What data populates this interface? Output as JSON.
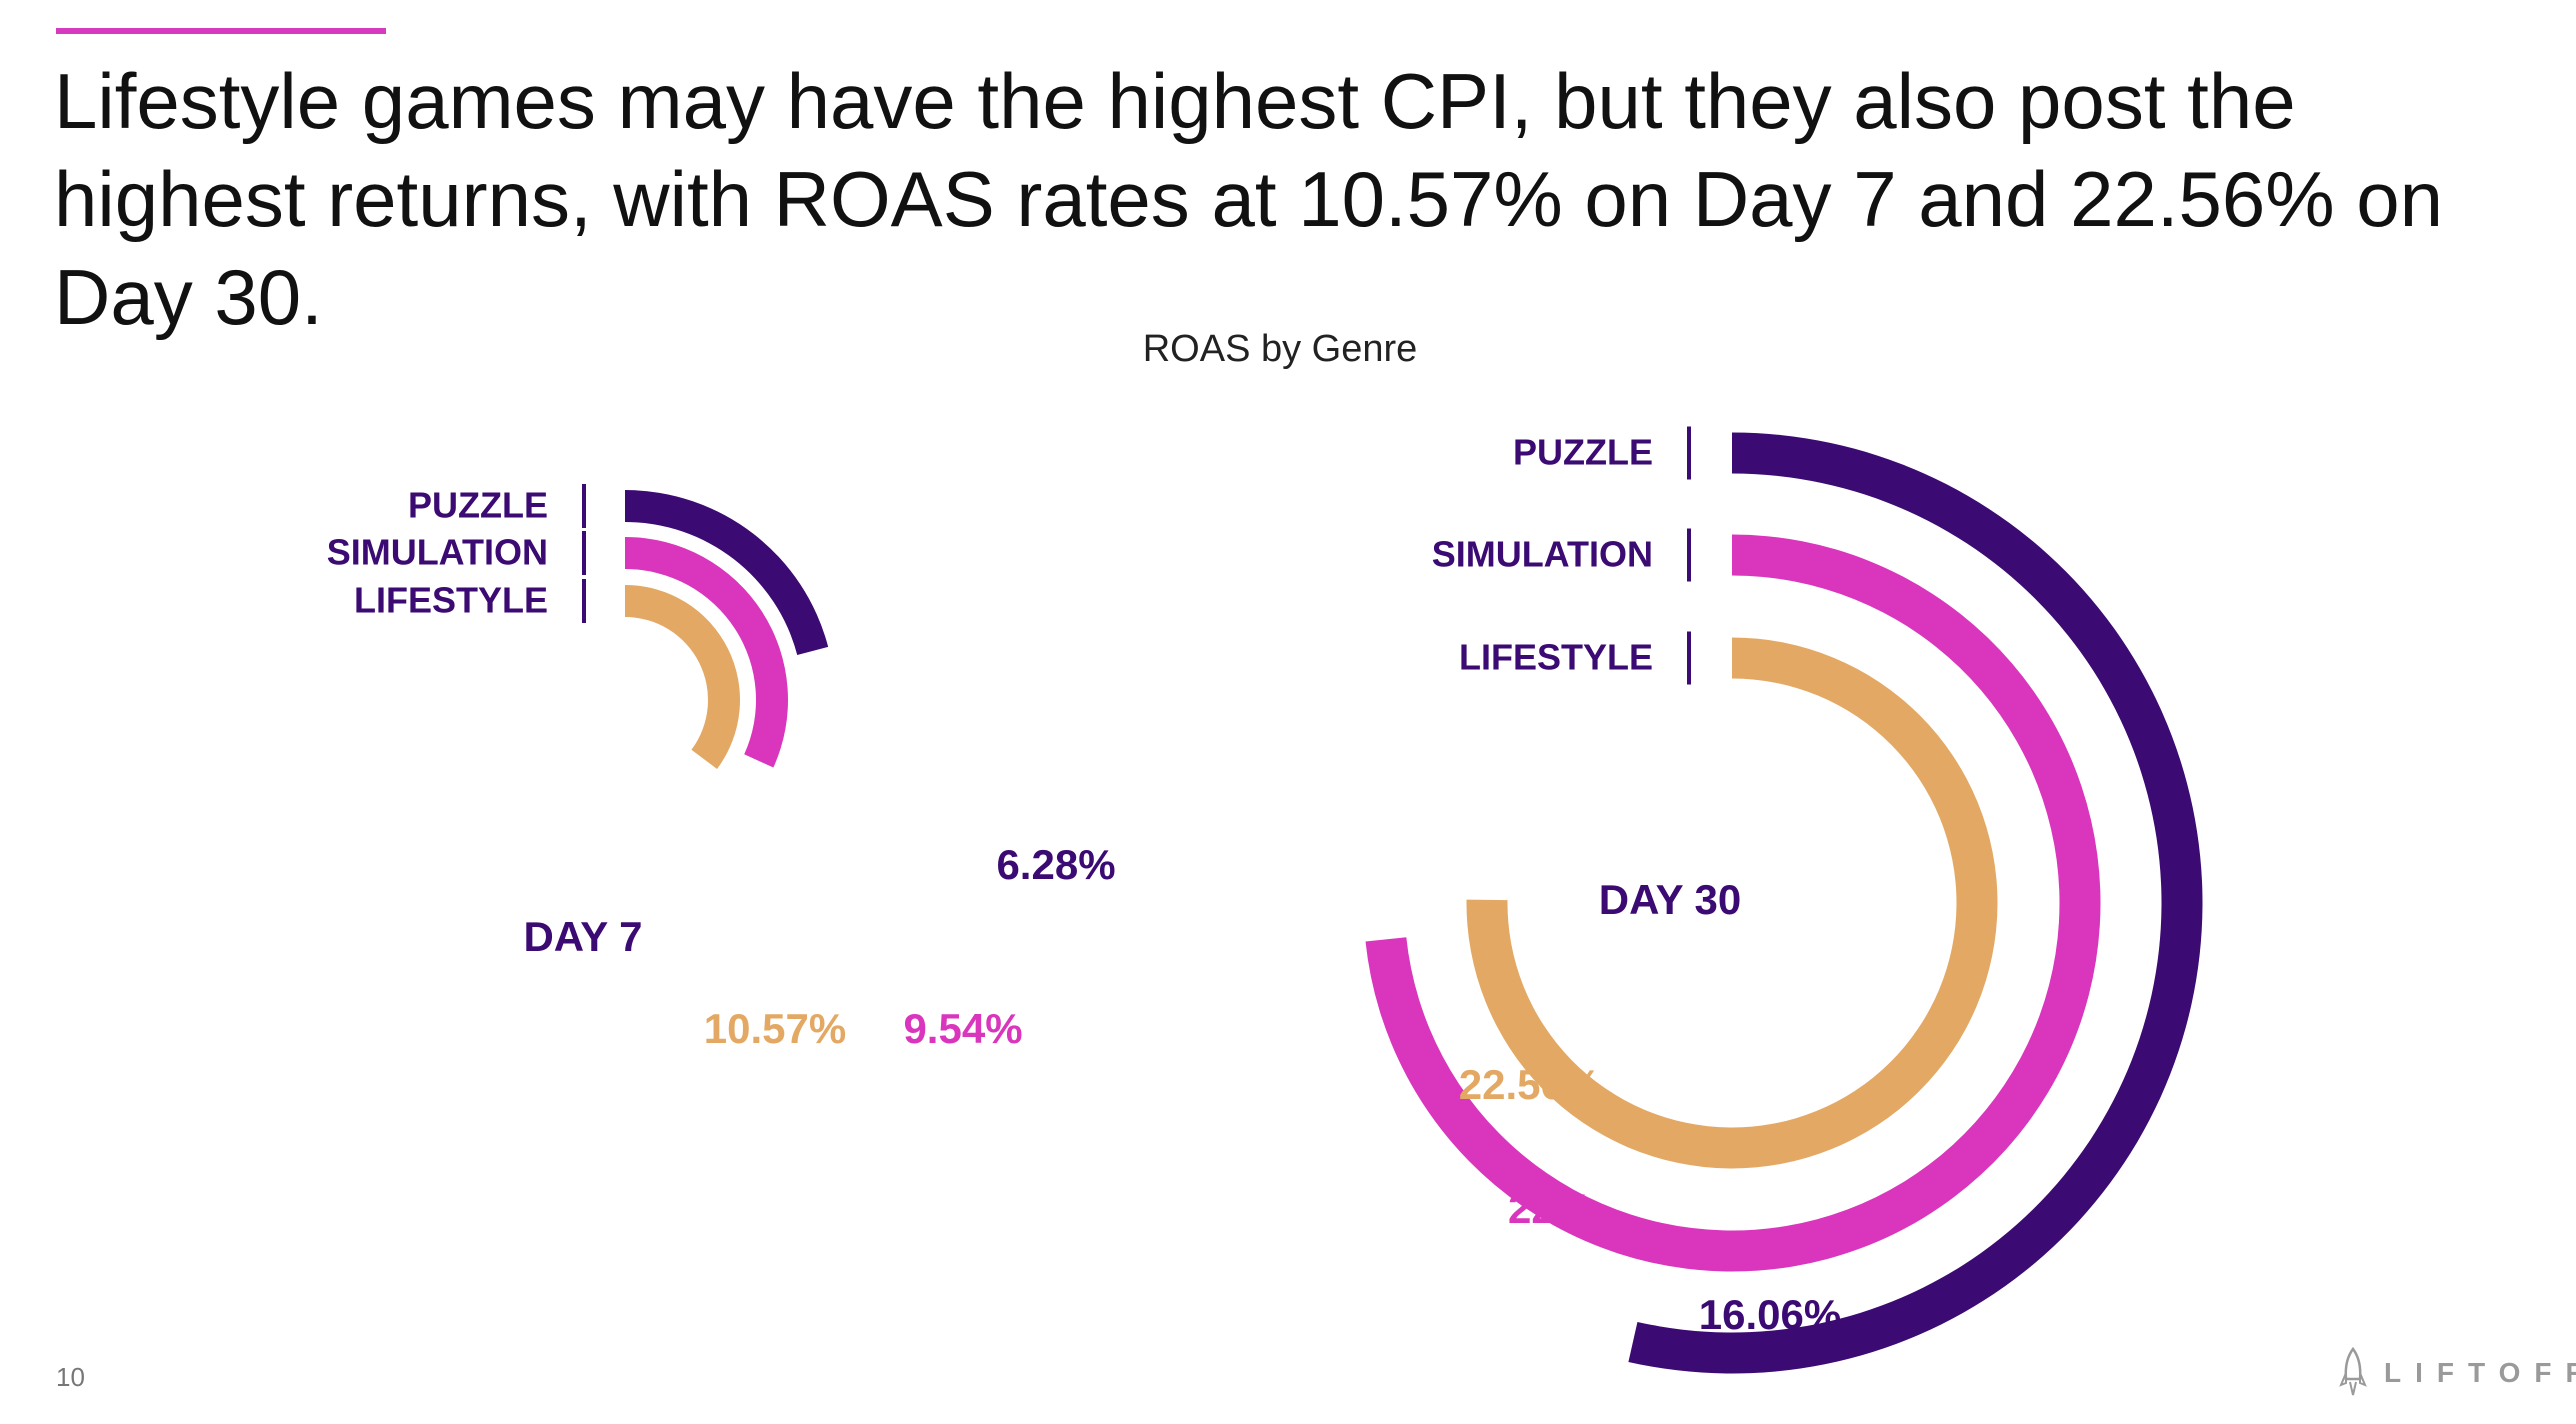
{
  "header": {
    "headline": "Lifestyle games may have the highest CPI, but they also post the highest returns, with ROAS rates at 10.57% on Day 7 and 22.56% on Day 30.",
    "accent_color": "#d63abf"
  },
  "chart_title": "ROAS by Genre",
  "chart_data": [
    {
      "type": "radial-bar",
      "center_label": "DAY 7",
      "categories": [
        "PUZZLE",
        "SIMULATION",
        "LIFESTYLE"
      ],
      "values": [
        6.28,
        9.54,
        10.57
      ],
      "value_labels": [
        "6.28%",
        "9.54%",
        "10.57%"
      ],
      "unit": "%",
      "colors": [
        "#3b0a72",
        "#d936bd",
        "#e3a964"
      ]
    },
    {
      "type": "radial-bar",
      "center_label": "DAY 30",
      "categories": [
        "PUZZLE",
        "SIMULATION",
        "LIFESTYLE"
      ],
      "values": [
        16.06,
        22,
        22.56
      ],
      "value_labels": [
        "16.06%",
        "22%",
        "22.56%"
      ],
      "unit": "%",
      "colors": [
        "#3b0a72",
        "#d936bd",
        "#e3a964"
      ]
    }
  ],
  "footer": {
    "page_number": "10",
    "brand": "LIFTOFF",
    "brand_icon": "rocket-icon"
  }
}
